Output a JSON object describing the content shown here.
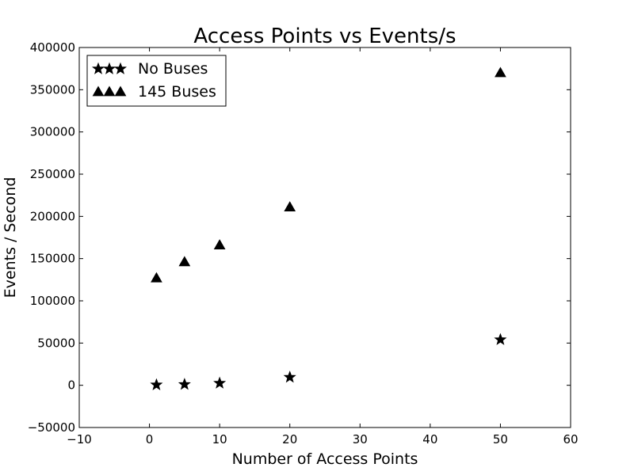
{
  "chart_data": {
    "type": "scatter",
    "title": "Access Points vs Events/s",
    "xlabel": "Number of Access Points",
    "ylabel": "Events / Second",
    "xlim": [
      -10,
      60
    ],
    "ylim": [
      -50000,
      400000
    ],
    "xticks": [
      -10,
      0,
      10,
      20,
      30,
      40,
      50,
      60
    ],
    "xtick_labels": [
      "−10",
      "0",
      "10",
      "20",
      "30",
      "40",
      "50",
      "60"
    ],
    "yticks": [
      -50000,
      0,
      50000,
      100000,
      150000,
      200000,
      250000,
      300000,
      350000,
      400000
    ],
    "ytick_labels": [
      "−50000",
      "0",
      "50000",
      "100000",
      "150000",
      "200000",
      "250000",
      "300000",
      "350000",
      "400000"
    ],
    "grid": false,
    "legend_position": "top-left",
    "series": [
      {
        "name": "No Buses",
        "marker": "star",
        "color": "#000000",
        "x": [
          1,
          5,
          10,
          20,
          50
        ],
        "y": [
          500,
          1000,
          2500,
          9500,
          54000
        ]
      },
      {
        "name": "145 Buses",
        "marker": "triangle",
        "color": "#000000",
        "x": [
          1,
          5,
          10,
          20,
          50
        ],
        "y": [
          127000,
          146000,
          166000,
          211000,
          370000
        ]
      }
    ]
  }
}
